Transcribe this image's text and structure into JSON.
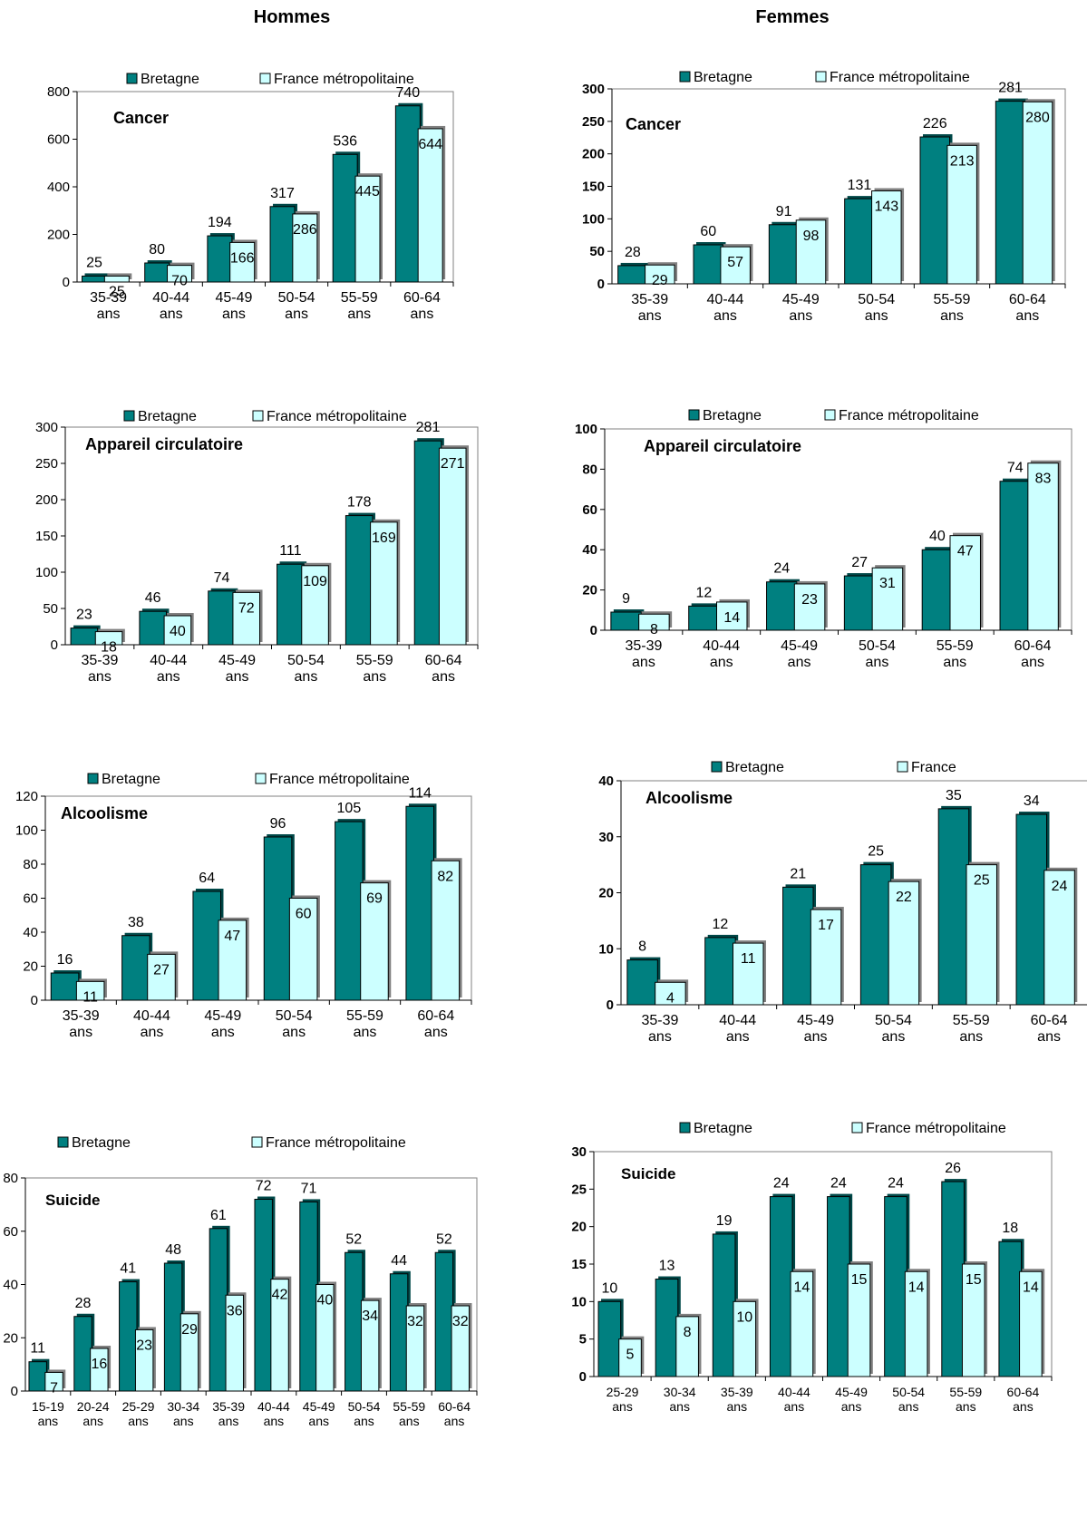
{
  "headers": {
    "left": "Hommes",
    "right": "Femmes"
  },
  "colors": {
    "bretagne": "#008080",
    "france": "#ccffff",
    "frame": "#808080"
  },
  "chart_data": [
    {
      "type": "bar",
      "title": "Cancer",
      "legend": [
        "Bretagne",
        "France métropolitaine"
      ],
      "categories": [
        "35-39 ans",
        "40-44 ans",
        "45-49 ans",
        "50-54 ans",
        "55-59 ans",
        "60-64 ans"
      ],
      "series": [
        {
          "name": "Bretagne",
          "values": [
            25,
            80,
            194,
            317,
            536,
            740
          ]
        },
        {
          "name": "France métropolitaine",
          "values": [
            25,
            70,
            166,
            286,
            445,
            644
          ]
        }
      ],
      "ylim": [
        0,
        800
      ],
      "yticks": [
        0,
        200,
        400,
        600,
        800
      ],
      "grid": false,
      "legend_position": "top"
    },
    {
      "type": "bar",
      "title": "Cancer",
      "legend": [
        "Bretagne",
        "France métropolitaine"
      ],
      "categories": [
        "35-39 ans",
        "40-44 ans",
        "45-49 ans",
        "50-54 ans",
        "55-59 ans",
        "60-64 ans"
      ],
      "series": [
        {
          "name": "Bretagne",
          "values": [
            28,
            60,
            91,
            131,
            226,
            281
          ]
        },
        {
          "name": "France métropolitaine",
          "values": [
            29,
            57,
            98,
            143,
            213,
            280
          ]
        }
      ],
      "ylim": [
        0,
        300
      ],
      "yticks": [
        0,
        50,
        100,
        150,
        200,
        250,
        300
      ],
      "grid": false,
      "legend_position": "top"
    },
    {
      "type": "bar",
      "title": "Appareil circulatoire",
      "legend": [
        "Bretagne",
        "France métropolitaine"
      ],
      "categories": [
        "35-39 ans",
        "40-44 ans",
        "45-49 ans",
        "50-54 ans",
        "55-59 ans",
        "60-64 ans"
      ],
      "series": [
        {
          "name": "Bretagne",
          "values": [
            23,
            46,
            74,
            111,
            178,
            281
          ]
        },
        {
          "name": "France métropolitaine",
          "values": [
            18,
            40,
            72,
            109,
            169,
            271
          ]
        }
      ],
      "ylim": [
        0,
        300
      ],
      "yticks": [
        0,
        50,
        100,
        150,
        200,
        250,
        300
      ],
      "grid": false,
      "legend_position": "top"
    },
    {
      "type": "bar",
      "title": "Appareil circulatoire",
      "legend": [
        "Bretagne",
        "France métropolitaine"
      ],
      "categories": [
        "35-39 ans",
        "40-44 ans",
        "45-49 ans",
        "50-54 ans",
        "55-59 ans",
        "60-64 ans"
      ],
      "series": [
        {
          "name": "Bretagne",
          "values": [
            9,
            12,
            24,
            27,
            40,
            74
          ]
        },
        {
          "name": "France métropolitaine",
          "values": [
            8,
            14,
            23,
            31,
            47,
            83
          ]
        }
      ],
      "ylim": [
        0,
        100
      ],
      "yticks": [
        0,
        20,
        40,
        60,
        80,
        100
      ],
      "grid": false,
      "legend_position": "top"
    },
    {
      "type": "bar",
      "title": "Alcoolisme",
      "legend": [
        "Bretagne",
        "France métropolitaine"
      ],
      "categories": [
        "35-39 ans",
        "40-44 ans",
        "45-49 ans",
        "50-54 ans",
        "55-59 ans",
        "60-64 ans"
      ],
      "series": [
        {
          "name": "Bretagne",
          "values": [
            16,
            38,
            64,
            96,
            105,
            114
          ]
        },
        {
          "name": "France métropolitaine",
          "values": [
            11,
            27,
            47,
            60,
            69,
            82
          ]
        }
      ],
      "ylim": [
        0,
        120
      ],
      "yticks": [
        0,
        20,
        40,
        60,
        80,
        100,
        120
      ],
      "grid": false,
      "legend_position": "top"
    },
    {
      "type": "bar",
      "title": "Alcoolisme",
      "legend": [
        "Bretagne",
        "France"
      ],
      "categories": [
        "35-39 ans",
        "40-44 ans",
        "45-49 ans",
        "50-54 ans",
        "55-59 ans",
        "60-64 ans"
      ],
      "series": [
        {
          "name": "Bretagne",
          "values": [
            8,
            12,
            21,
            25,
            35,
            34
          ]
        },
        {
          "name": "France",
          "values": [
            4,
            11,
            17,
            22,
            25,
            24
          ]
        }
      ],
      "ylim": [
        0,
        40
      ],
      "yticks": [
        0,
        10,
        20,
        30,
        40
      ],
      "grid": false,
      "legend_position": "top"
    },
    {
      "type": "bar",
      "title": "Suicide",
      "legend": [
        "Bretagne",
        "France métropolitaine"
      ],
      "categories": [
        "15-19 ans",
        "20-24 ans",
        "25-29 ans",
        "30-34 ans",
        "35-39 ans",
        "40-44 ans",
        "45-49 ans",
        "50-54 ans",
        "55-59 ans",
        "60-64 ans"
      ],
      "series": [
        {
          "name": "Bretagne",
          "values": [
            11,
            28,
            41,
            48,
            61,
            72,
            71,
            52,
            44,
            52
          ]
        },
        {
          "name": "France métropolitaine",
          "values": [
            7,
            16,
            23,
            29,
            36,
            42,
            40,
            34,
            32,
            32
          ]
        }
      ],
      "ylim": [
        0,
        80
      ],
      "yticks": [
        0,
        20,
        40,
        60,
        80
      ],
      "grid": false,
      "legend_position": "top"
    },
    {
      "type": "bar",
      "title": "Suicide",
      "legend": [
        "Bretagne",
        "France métropolitaine"
      ],
      "categories": [
        "25-29 ans",
        "30-34 ans",
        "35-39 ans",
        "40-44 ans",
        "45-49 ans",
        "50-54 ans",
        "55-59 ans",
        "60-64 ans"
      ],
      "series": [
        {
          "name": "Bretagne",
          "values": [
            10,
            13,
            19,
            24,
            24,
            24,
            26,
            18
          ]
        },
        {
          "name": "France métropolitaine",
          "values": [
            5,
            8,
            10,
            14,
            15,
            14,
            15,
            14
          ]
        }
      ],
      "ylim": [
        0,
        30
      ],
      "yticks": [
        0,
        5,
        10,
        15,
        20,
        25,
        30
      ],
      "grid": false,
      "legend_position": "top"
    }
  ]
}
